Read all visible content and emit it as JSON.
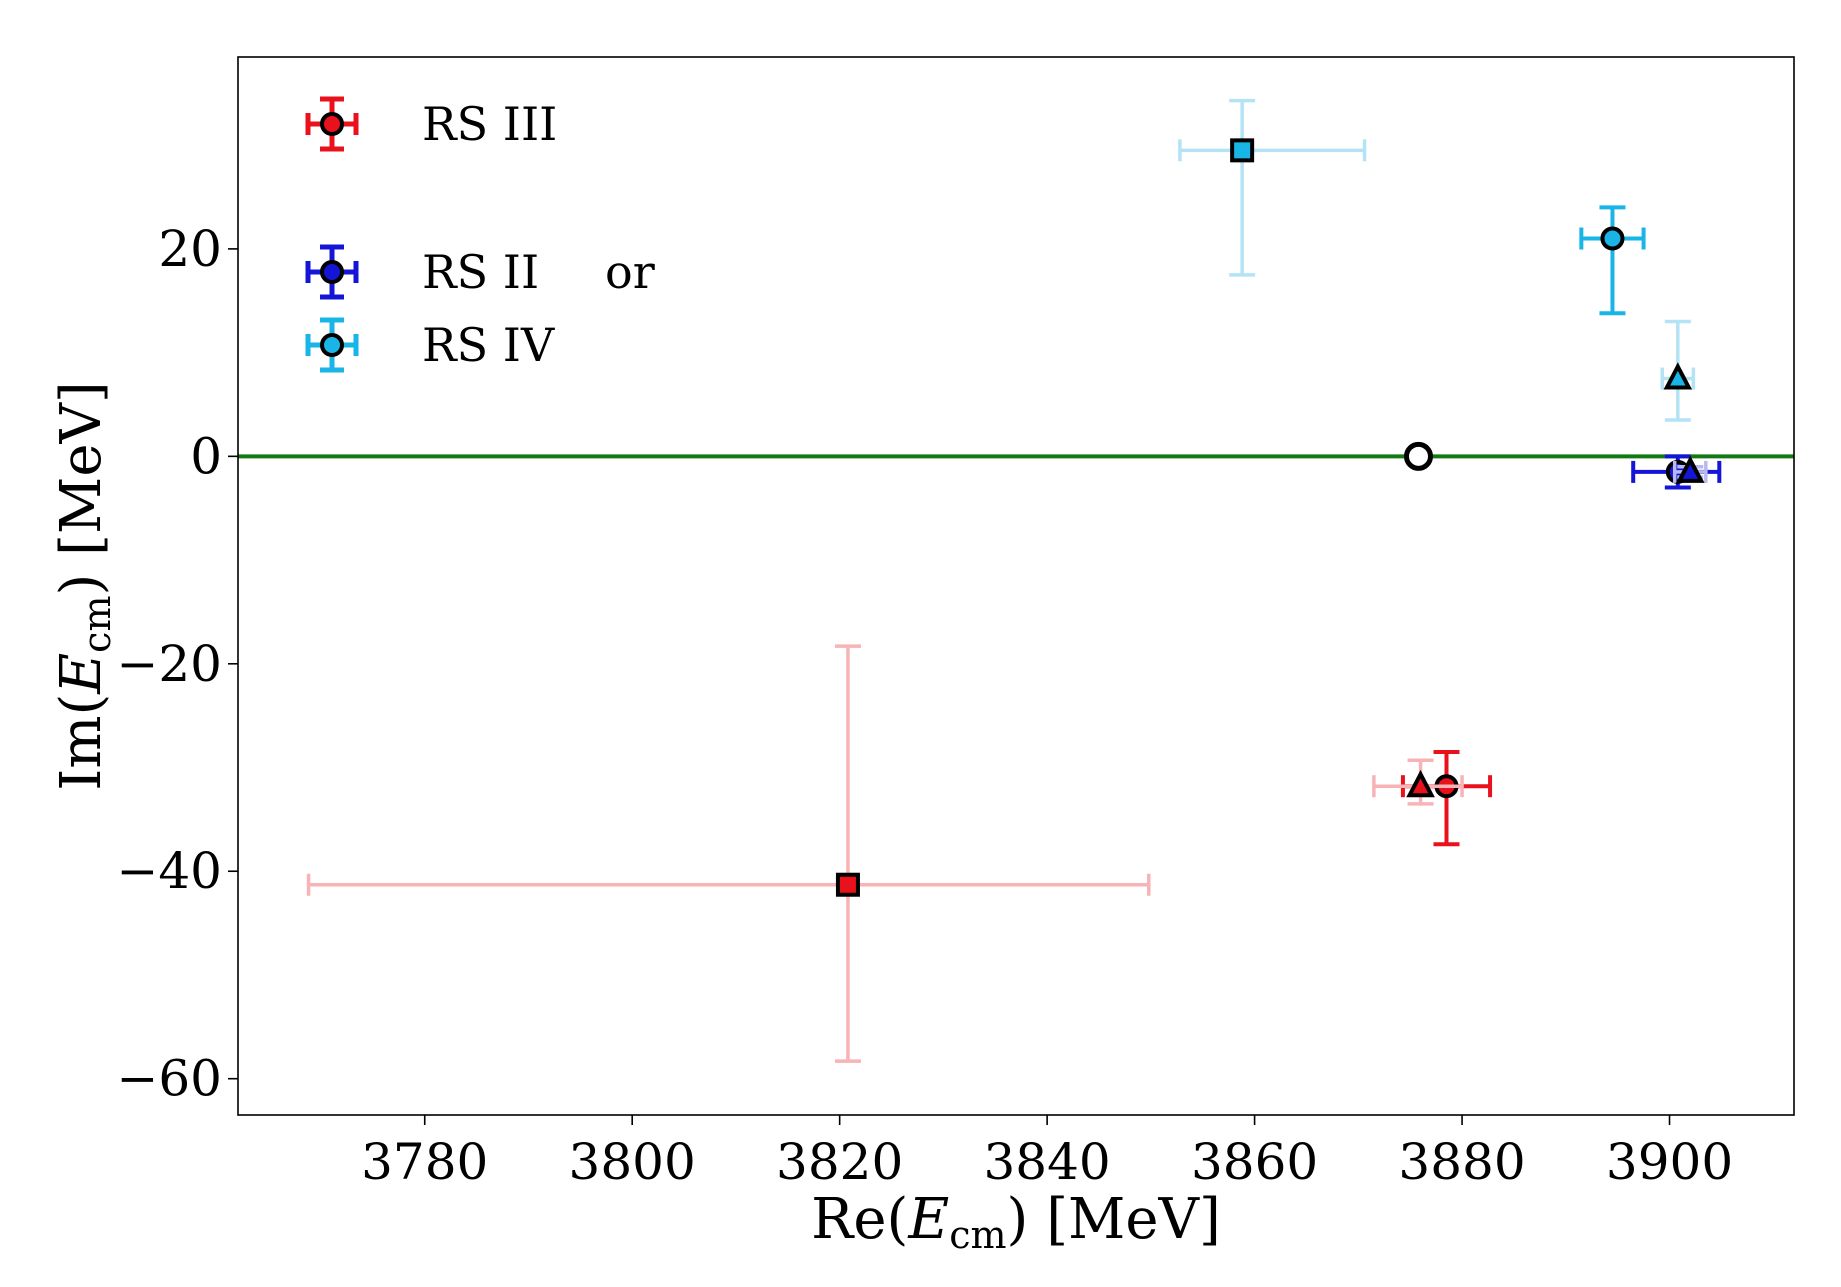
{
  "chart_data": {
    "type": "scatter",
    "title": "",
    "xlabel": "Re(E_cm) [MeV]",
    "ylabel": "Im(E_cm) [MeV]",
    "xlabel_parts": {
      "pre": "Re(",
      "var": "E",
      "sub": "cm",
      "post": ") [MeV]"
    },
    "ylabel_parts": {
      "pre": "Im(",
      "var": "E",
      "sub": "cm",
      "post": ") [MeV]"
    },
    "xlim": [
      3762,
      3912
    ],
    "ylim": [
      -63.5,
      38.5
    ],
    "xticks": [
      3780,
      3800,
      3820,
      3840,
      3860,
      3880,
      3900
    ],
    "yticks": [
      -60,
      -40,
      -20,
      0,
      20
    ],
    "ytick_labels": [
      "−60",
      "−40",
      "−20",
      "0",
      "20"
    ],
    "grid": false,
    "legend_position": "top-left",
    "colors": {
      "rs3": "#e8111c",
      "rs3_faint": "#f7b3b6",
      "rs2": "#1515d8",
      "rs4": "#19b5e6",
      "rs4_faint": "#b4e3f6",
      "threshold_line": "#137a13"
    },
    "threshold_line_y": 0,
    "legend": [
      {
        "label": "RS III",
        "color": "#e8111c",
        "marker": "circle"
      },
      {
        "label": "RS II",
        "color": "#1515d8",
        "marker": "circle",
        "suffix": "or"
      },
      {
        "label": "RS IV",
        "color": "#19b5e6",
        "marker": "circle"
      }
    ],
    "points": [
      {
        "series": "RS IV",
        "marker": "square",
        "x": 3858.8,
        "y": 29.5,
        "xerr": [
          6.0,
          11.8
        ],
        "yerr": [
          12.0,
          4.8
        ],
        "fill": "#19b5e6",
        "errcolor": "#b4e3f6"
      },
      {
        "series": "RS IV",
        "marker": "circle",
        "x": 3894.5,
        "y": 21.0,
        "xerr": [
          3.0,
          3.0
        ],
        "yerr": [
          7.2,
          3.0
        ],
        "fill": "#19b5e6",
        "errcolor": "#19b5e6"
      },
      {
        "series": "RS IV",
        "marker": "triangle",
        "x": 3900.8,
        "y": 7.5,
        "xerr": [
          1.5,
          1.5
        ],
        "yerr": [
          4.0,
          5.5
        ],
        "fill": "#19b5e6",
        "errcolor": "#b4e3f6"
      },
      {
        "series": "RS II",
        "marker": "circle",
        "x": 3900.8,
        "y": -1.5,
        "xerr": [
          4.3,
          4.0
        ],
        "yerr": [
          1.5,
          1.5
        ],
        "fill": "#1515d8",
        "errcolor": "#1515d8"
      },
      {
        "series": "RS II",
        "marker": "triangle",
        "x": 3902.0,
        "y": -1.5,
        "xerr": [
          1.5,
          1.5
        ],
        "yerr": [
          0.5,
          0.5
        ],
        "fill": "#1515d8",
        "errcolor": "#b9b9f0"
      },
      {
        "series": "threshold",
        "marker": "open-circle",
        "x": 3875.8,
        "y": 0.0,
        "xerr": [
          0,
          0
        ],
        "yerr": [
          0,
          0
        ],
        "fill": "#ffffff",
        "errcolor": "#000000"
      },
      {
        "series": "RS III",
        "marker": "square",
        "x": 3820.8,
        "y": -41.3,
        "xerr": [
          52.0,
          29.0
        ],
        "yerr": [
          17.0,
          23.0
        ],
        "fill": "#e8111c",
        "errcolor": "#f7b3b6"
      },
      {
        "series": "RS III",
        "marker": "circle",
        "x": 3878.5,
        "y": -31.8,
        "xerr": [
          4.2,
          4.2
        ],
        "yerr": [
          5.6,
          3.3
        ],
        "fill": "#e8111c",
        "errcolor": "#e8111c"
      },
      {
        "series": "RS III",
        "marker": "triangle",
        "x": 3876.0,
        "y": -31.8,
        "xerr": [
          4.5,
          4.0
        ],
        "yerr": [
          1.7,
          2.5
        ],
        "fill": "#e8111c",
        "errcolor": "#f7b3b6"
      }
    ]
  }
}
